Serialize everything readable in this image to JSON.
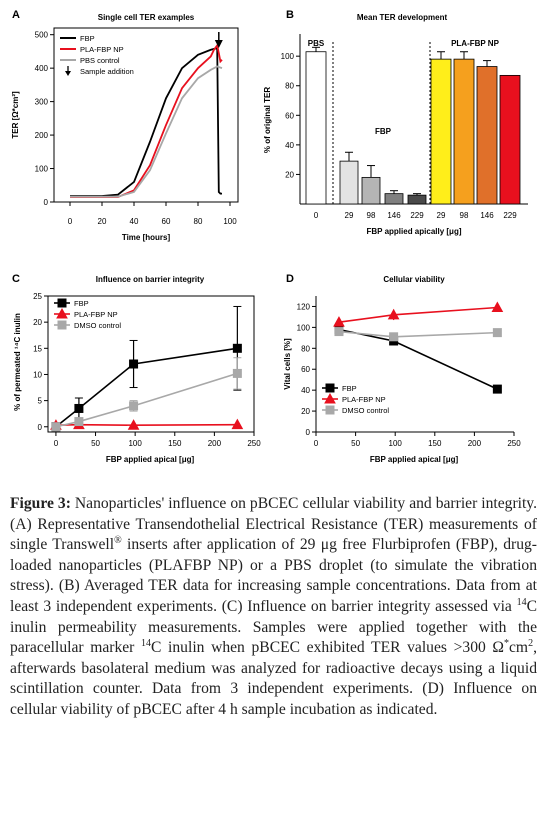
{
  "chart_data": [
    {
      "panel": "A",
      "type": "line",
      "title": "Single cell TER examples",
      "xlabel": "Time [hours]",
      "ylabel": "TER [Ω*cm²]",
      "xlim": [
        -10,
        105
      ],
      "ylim": [
        0,
        520
      ],
      "xticks": [
        "0",
        "20",
        "40",
        "60",
        "80",
        "100"
      ],
      "yticks": [
        "0",
        "100",
        "200",
        "300",
        "400",
        "500"
      ],
      "legend_position": "top-left",
      "annotation": "Sample addition",
      "sample_addition_x": 93,
      "series": [
        {
          "name": "FBP",
          "color": "#000000",
          "x": [
            0,
            10,
            20,
            30,
            40,
            50,
            60,
            70,
            80,
            88,
            92,
            93,
            94,
            95
          ],
          "y": [
            18,
            18,
            18,
            22,
            60,
            180,
            310,
            400,
            440,
            455,
            460,
            30,
            25,
            25
          ]
        },
        {
          "name": "PLA-FBP NP",
          "color": "#e8101e",
          "x": [
            0,
            10,
            20,
            30,
            40,
            50,
            60,
            70,
            80,
            88,
            90,
            92,
            93,
            94,
            95
          ],
          "y": [
            15,
            15,
            15,
            15,
            35,
            110,
            230,
            340,
            400,
            435,
            455,
            468,
            445,
            420,
            425
          ]
        },
        {
          "name": "PBS control",
          "color": "#a8a8a8",
          "x": [
            0,
            10,
            20,
            30,
            40,
            50,
            60,
            70,
            80,
            88,
            92,
            95
          ],
          "y": [
            16,
            16,
            16,
            16,
            30,
            95,
            205,
            310,
            370,
            395,
            405,
            400
          ]
        }
      ]
    },
    {
      "panel": "B",
      "type": "bar",
      "title": "Mean TER development",
      "xlabel": "FBP applied apically [μg]",
      "ylabel": "% of original TER",
      "ylim": [
        0,
        115
      ],
      "yticks": [
        "20",
        "40",
        "60",
        "80",
        "100"
      ],
      "group_labels": [
        "PBS",
        "FBP",
        "PLA-FBP NP"
      ],
      "categories": [
        "0",
        "29",
        "98",
        "146",
        "229",
        "29",
        "98",
        "146",
        "229"
      ],
      "values": [
        103,
        29,
        18,
        7,
        6,
        98,
        98,
        93,
        87
      ],
      "errors": [
        3,
        6,
        8,
        2,
        1,
        5,
        5,
        4,
        0
      ],
      "colors": [
        "#ffffff",
        "#e3e3e3",
        "#b5b5b5",
        "#808080",
        "#4a4a4a",
        "#ffee1a",
        "#f5a01e",
        "#e0702a",
        "#e8101e"
      ]
    },
    {
      "panel": "C",
      "type": "line",
      "title": "Influence on barrier integrity",
      "xlabel": "FBP applied apical [μg]",
      "ylabel": "% of permeated ¹⁴C inulin",
      "xlim": [
        -10,
        250
      ],
      "ylim": [
        -1,
        25
      ],
      "xticks": [
        "0",
        "50",
        "100",
        "150",
        "200",
        "250"
      ],
      "yticks": [
        "0",
        "5",
        "10",
        "15",
        "20",
        "25"
      ],
      "legend_position": "top-left",
      "series": [
        {
          "name": "FBP",
          "color": "#000000",
          "marker": "square",
          "x": [
            0,
            29,
            98,
            229
          ],
          "y": [
            0,
            3.5,
            12,
            15
          ],
          "err": [
            0,
            2,
            4.5,
            8
          ]
        },
        {
          "name": "PLA-FBP NP",
          "color": "#e8101e",
          "marker": "triangle",
          "x": [
            0,
            29,
            98,
            229
          ],
          "y": [
            0.3,
            0.4,
            0.3,
            0.4
          ],
          "err": [
            0,
            0,
            0,
            0
          ]
        },
        {
          "name": "DMSO control",
          "color": "#a8a8a8",
          "marker": "square",
          "x": [
            0,
            29,
            98,
            229
          ],
          "y": [
            0,
            1,
            4,
            10.2
          ],
          "err": [
            0,
            0.5,
            1,
            3
          ]
        }
      ]
    },
    {
      "panel": "D",
      "type": "line",
      "title": "Cellular viability",
      "xlabel": "FBP applied apical [μg]",
      "ylabel": "Vital cells [%]",
      "xlim": [
        0,
        250
      ],
      "ylim": [
        0,
        130
      ],
      "xticks": [
        "0",
        "50",
        "100",
        "150",
        "200",
        "250"
      ],
      "yticks": [
        "0",
        "20",
        "40",
        "60",
        "80",
        "100",
        "120"
      ],
      "legend_position": "bottom-left",
      "series": [
        {
          "name": "FBP",
          "color": "#000000",
          "marker": "square",
          "x": [
            29,
            98,
            229
          ],
          "y": [
            98,
            87,
            41
          ],
          "err": [
            2,
            2,
            2
          ]
        },
        {
          "name": "PLA-FBP NP",
          "color": "#e8101e",
          "marker": "triangle",
          "x": [
            29,
            98,
            229
          ],
          "y": [
            105,
            112,
            119
          ],
          "err": [
            3,
            5,
            4
          ]
        },
        {
          "name": "DMSO control",
          "color": "#a8a8a8",
          "marker": "square",
          "x": [
            29,
            98,
            229
          ],
          "y": [
            96,
            91,
            95
          ],
          "err": [
            2,
            2,
            2
          ]
        }
      ]
    }
  ],
  "panel_letters": [
    "A",
    "B",
    "C",
    "D"
  ],
  "caption": {
    "figure_label": "Figure 3:",
    "p1": " Nanoparticles' influence on pBCEC cellular viability and barrier integrity. (A) Representative Transendothelial Electrical Resistance (TER) measurements of single Transwell",
    "p1_sup": "®",
    "p2": " inserts after application of 29 μg free Flurbiprofen (FBP), drug-loaded nanoparticles (PLAFBP NP) or a PBS droplet (to simulate the vibration stress). (B) Averaged TER data for increasing sample concentrations. Data from at least 3 independent experiments. (C) Influence on barrier integrity assessed via ",
    "p2_sup": "14",
    "p3": "C inulin permeability measurements. Samples were applied together with the paracellular marker ",
    "p3_sup": "14",
    "p4": "C inulin when pBCEC exhibited TER values >300 Ω",
    "p4_sup": "*",
    "p5": "cm",
    "p5_sup": "2",
    "p6": ", afterwards basolateral medium was analyzed for radioactive decays using a liquid scintillation counter. Data from 3 independent experiments. (D) Influence on cellular viability of pBCEC after 4 h sample incubation as indicated."
  }
}
